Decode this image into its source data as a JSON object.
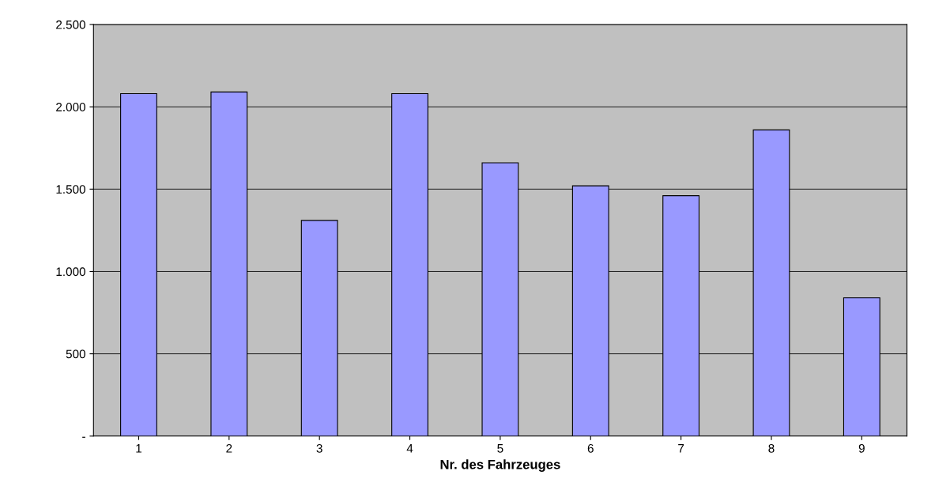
{
  "chart_data": {
    "type": "bar",
    "xlabel": "Nr. des Fahrzeuges",
    "categories": [
      "1",
      "2",
      "3",
      "4",
      "5",
      "6",
      "7",
      "8",
      "9"
    ],
    "values": [
      2080,
      2090,
      1310,
      2080,
      1660,
      1520,
      1460,
      1860,
      840
    ],
    "color": "#9999ff",
    "ylim": [
      0,
      2500
    ],
    "yticks": [
      {
        "value": 0,
        "label": "-"
      },
      {
        "value": 500,
        "label": "500"
      },
      {
        "value": 1000,
        "label": "1.000"
      },
      {
        "value": 1500,
        "label": "1.500"
      },
      {
        "value": 2000,
        "label": "2.000"
      },
      {
        "value": 2500,
        "label": "2.500"
      }
    ],
    "grid": "y"
  }
}
